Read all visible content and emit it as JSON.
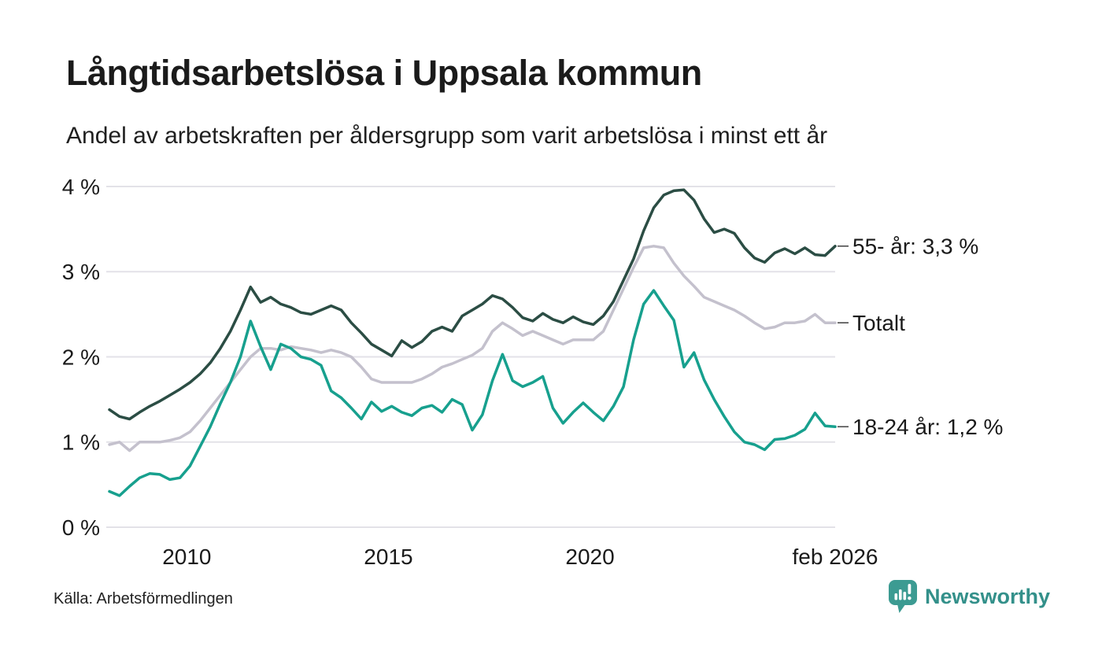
{
  "header": {
    "title": "Långtidsarbetslösa i Uppsala kommun",
    "subtitle": "Andel av arbetskraften per åldersgrupp som varit arbetslösa i minst ett år"
  },
  "chart_data": {
    "type": "line",
    "title": "Långtidsarbetslösa i Uppsala kommun",
    "subtitle": "Andel av arbetskraften per åldersgrupp som varit arbetslösa i minst ett år",
    "xlabel": "",
    "ylabel": "",
    "ylim": [
      0,
      4
    ],
    "grid": true,
    "legend_position": "right-annotations",
    "x_domain": [
      2008.08,
      2026.08
    ],
    "x_ticks": [
      {
        "label": "2010",
        "year": 2010
      },
      {
        "label": "2015",
        "year": 2015
      },
      {
        "label": "2020",
        "year": 2020
      },
      {
        "label": "feb 2026",
        "year": 2026.08
      }
    ],
    "y_ticks": [
      {
        "label": "0 %",
        "value": 0
      },
      {
        "label": "1 %",
        "value": 1
      },
      {
        "label": "2 %",
        "value": 2
      },
      {
        "label": "3 %",
        "value": 3
      },
      {
        "label": "4 %",
        "value": 4
      }
    ],
    "series": [
      {
        "name": "Totalt",
        "color": "#c4c1cd",
        "values": [
          0.97,
          1.0,
          0.9,
          1.0,
          1.0,
          1.0,
          1.02,
          1.05,
          1.12,
          1.25,
          1.4,
          1.55,
          1.7,
          1.85,
          2.0,
          2.1,
          2.1,
          2.08,
          2.12,
          2.1,
          2.08,
          2.05,
          2.08,
          2.05,
          2.0,
          1.88,
          1.74,
          1.7,
          1.7,
          1.7,
          1.7,
          1.74,
          1.8,
          1.88,
          1.92,
          1.97,
          2.02,
          2.1,
          2.3,
          2.4,
          2.33,
          2.25,
          2.3,
          2.25,
          2.2,
          2.15,
          2.2,
          2.2,
          2.2,
          2.3,
          2.55,
          2.8,
          3.05,
          3.28,
          3.3,
          3.28,
          3.1,
          2.95,
          2.83,
          2.7,
          2.65,
          2.6,
          2.55,
          2.48,
          2.4,
          2.33,
          2.35,
          2.4,
          2.4,
          2.42,
          2.5,
          2.4,
          2.4
        ]
      },
      {
        "name": "55- år",
        "color": "#2b4d44",
        "values": [
          1.38,
          1.3,
          1.27,
          1.35,
          1.42,
          1.48,
          1.55,
          1.62,
          1.7,
          1.8,
          1.93,
          2.1,
          2.3,
          2.55,
          2.82,
          2.64,
          2.7,
          2.62,
          2.58,
          2.52,
          2.5,
          2.55,
          2.6,
          2.55,
          2.4,
          2.28,
          2.15,
          2.08,
          2.01,
          2.19,
          2.11,
          2.18,
          2.3,
          2.35,
          2.3,
          2.48,
          2.55,
          2.62,
          2.72,
          2.68,
          2.58,
          2.46,
          2.42,
          2.51,
          2.44,
          2.4,
          2.47,
          2.41,
          2.38,
          2.48,
          2.65,
          2.9,
          3.15,
          3.48,
          3.75,
          3.9,
          3.95,
          3.96,
          3.84,
          3.62,
          3.46,
          3.5,
          3.45,
          3.28,
          3.16,
          3.11,
          3.22,
          3.27,
          3.21,
          3.28,
          3.2,
          3.19,
          3.3
        ]
      },
      {
        "name": "18-24 år",
        "color": "#17a08e",
        "values": [
          0.42,
          0.37,
          0.48,
          0.58,
          0.63,
          0.62,
          0.56,
          0.58,
          0.72,
          0.95,
          1.18,
          1.45,
          1.7,
          2.0,
          2.42,
          2.12,
          1.85,
          2.15,
          2.1,
          2.0,
          1.97,
          1.9,
          1.6,
          1.52,
          1.4,
          1.27,
          1.47,
          1.36,
          1.42,
          1.35,
          1.31,
          1.4,
          1.43,
          1.35,
          1.5,
          1.44,
          1.14,
          1.32,
          1.72,
          2.03,
          1.72,
          1.65,
          1.7,
          1.77,
          1.4,
          1.22,
          1.35,
          1.46,
          1.35,
          1.25,
          1.42,
          1.65,
          2.2,
          2.62,
          2.78,
          2.6,
          2.43,
          1.88,
          2.05,
          1.73,
          1.5,
          1.3,
          1.12,
          1.0,
          0.97,
          0.91,
          1.03,
          1.04,
          1.08,
          1.15,
          1.34,
          1.19,
          1.18
        ]
      }
    ],
    "annotations": [
      {
        "label": "55- år: 3,3 %",
        "y_pct": 3.3
      },
      {
        "label": "Totalt",
        "y_pct": 2.4
      },
      {
        "label": "18-24 år: 1,2 %",
        "y_pct": 1.18
      }
    ]
  },
  "footer": {
    "source": "Källa: Arbetsförmedlingen",
    "brand": "Newsworthy"
  },
  "colors": {
    "series_55": "#2b4d44",
    "series_total": "#c4c1cd",
    "series_1824": "#17a08e",
    "gridline": "#e3e2e8",
    "text": "#1a1a1a",
    "annotation_dash": "#4a4a4a",
    "brand_teal": "#3c9b92",
    "brand_text": "#33908a"
  },
  "icons": {
    "brand_logo": "newsworthy-speech-bubble-barchart-icon"
  }
}
